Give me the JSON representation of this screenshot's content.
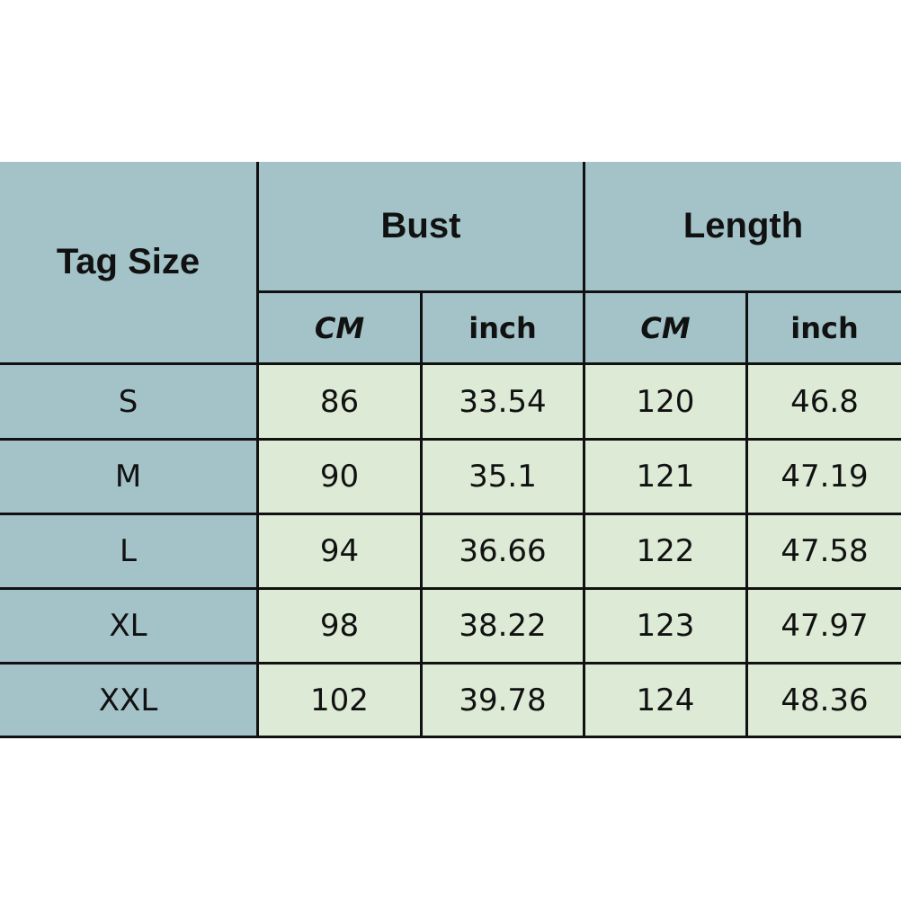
{
  "colors": {
    "header_bg": "#a3c3c9",
    "data_bg": "#dcead6",
    "border": "#111111"
  },
  "table": {
    "tag_size_label": "Tag Size",
    "groups": [
      {
        "label": "Bust",
        "units": [
          "CM",
          "inch"
        ]
      },
      {
        "label": "Length",
        "units": [
          "CM",
          "inch"
        ]
      }
    ],
    "rows": [
      {
        "size": "S",
        "values": [
          "86",
          "33.54",
          "120",
          "46.8"
        ]
      },
      {
        "size": "M",
        "values": [
          "90",
          "35.1",
          "121",
          "47.19"
        ]
      },
      {
        "size": "L",
        "values": [
          "94",
          "36.66",
          "122",
          "47.58"
        ]
      },
      {
        "size": "XL",
        "values": [
          "98",
          "38.22",
          "123",
          "47.97"
        ]
      },
      {
        "size": "XXL",
        "values": [
          "102",
          "39.78",
          "124",
          "48.36"
        ]
      }
    ]
  }
}
